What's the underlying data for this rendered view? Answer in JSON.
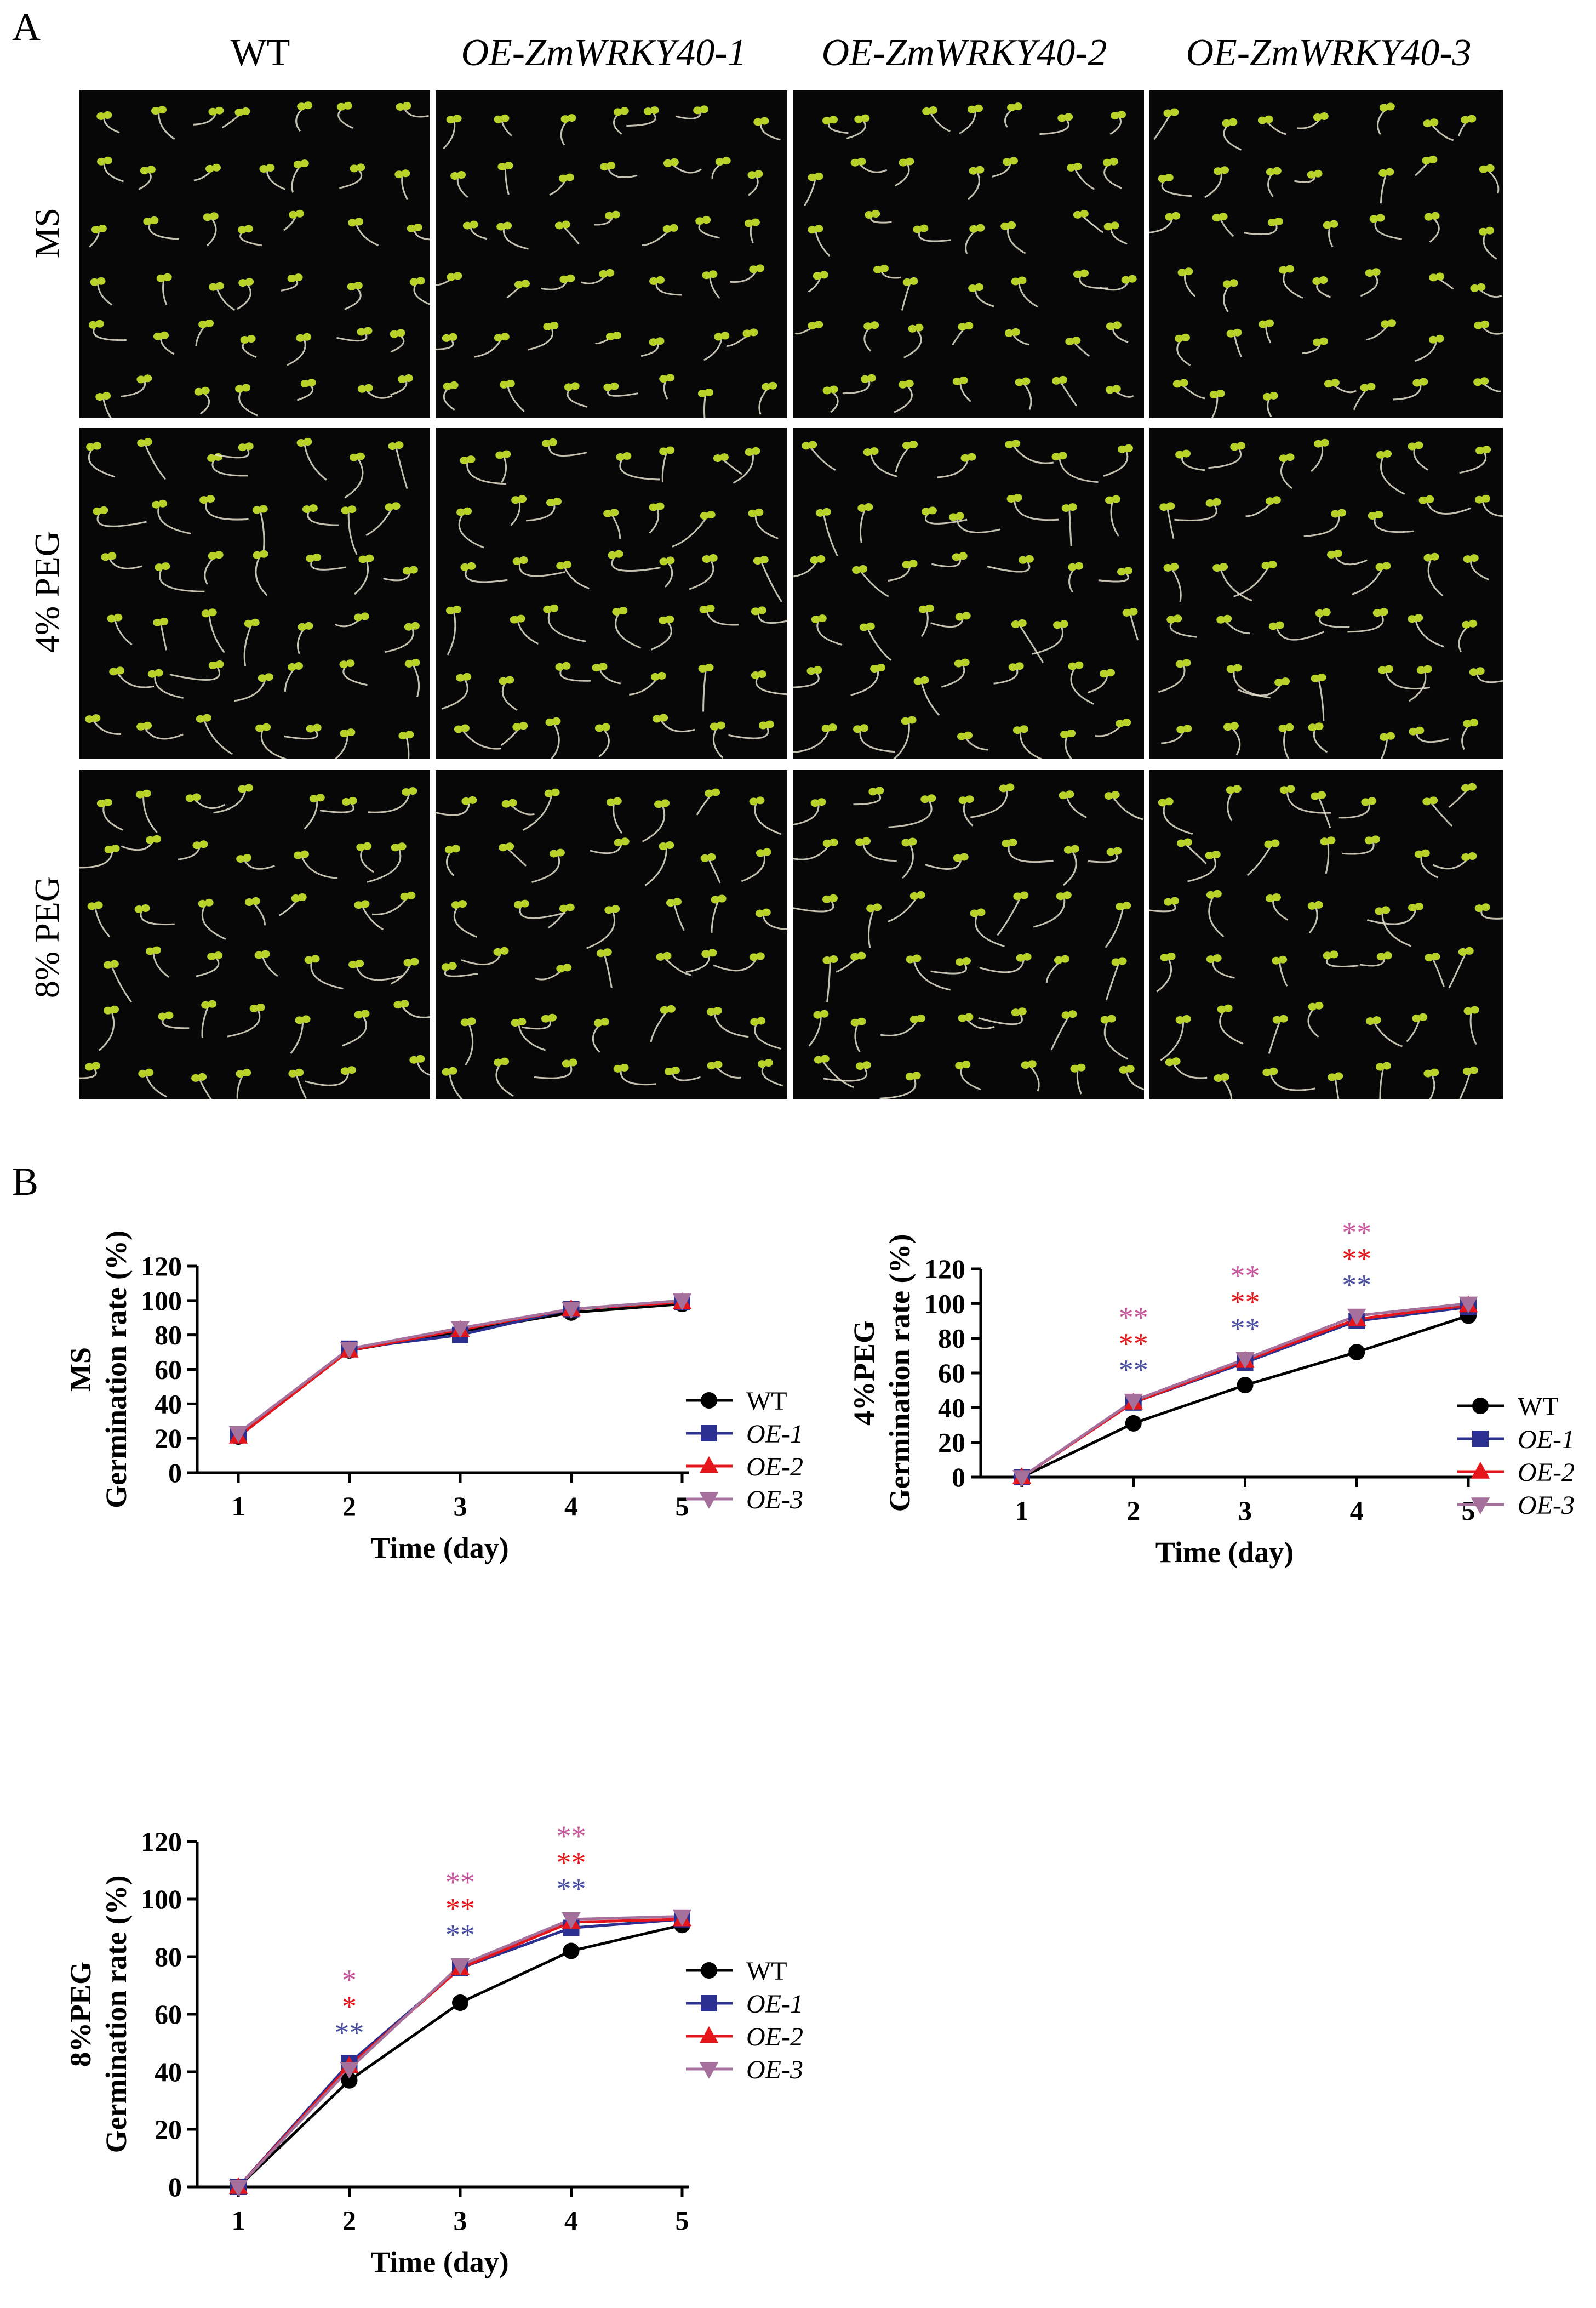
{
  "panel_a": {
    "letter": "A",
    "columns": [
      "WT",
      "OE-ZmWRKY40-1",
      "OE-ZmWRKY40-2",
      "OE-ZmWRKY40-3"
    ],
    "rows": [
      "MS",
      "4% PEG",
      "8% PEG"
    ],
    "colors": {
      "background": "#070707",
      "cotyledon": "#b8d22a",
      "root": "#e6e2cf"
    }
  },
  "panel_b": {
    "letter": "B"
  },
  "chart_data": [
    {
      "type": "line",
      "ylabel": "MS",
      "ylabel2": "Germination rate (%)",
      "xlabel": "Time (day)",
      "x": [
        1,
        2,
        3,
        4,
        5
      ],
      "xlim": [
        1,
        5
      ],
      "ylim": [
        0,
        120
      ],
      "yticks": [
        0,
        20,
        40,
        60,
        80,
        100,
        120
      ],
      "legend_position": "right",
      "series": [
        {
          "name": "WT",
          "marker": "circle",
          "color": "#000000",
          "values": [
            21,
            71,
            82,
            93,
            98
          ]
        },
        {
          "name": "OE-1",
          "marker": "square",
          "color": "#2b2f8f",
          "values": [
            22,
            72,
            80,
            95,
            99
          ]
        },
        {
          "name": "OE-2",
          "marker": "triangle-up",
          "color": "#e4161c",
          "values": [
            21,
            71,
            83,
            95,
            99
          ]
        },
        {
          "name": "OE-3",
          "marker": "triangle-down",
          "color": "#a5719c",
          "values": [
            23,
            72,
            84,
            95,
            100
          ]
        }
      ],
      "annotations": []
    },
    {
      "type": "line",
      "ylabel": "4%PEG",
      "ylabel2": "Germination rate (%)",
      "xlabel": "Time (day)",
      "x": [
        1,
        2,
        3,
        4,
        5
      ],
      "xlim": [
        1,
        5
      ],
      "ylim": [
        0,
        120
      ],
      "yticks": [
        0,
        20,
        40,
        60,
        80,
        100,
        120
      ],
      "legend_position": "right",
      "series": [
        {
          "name": "WT",
          "marker": "circle",
          "color": "#000000",
          "values": [
            0,
            31,
            53,
            72,
            93
          ]
        },
        {
          "name": "OE-1",
          "marker": "square",
          "color": "#2b2f8f",
          "values": [
            0,
            43,
            66,
            90,
            98
          ]
        },
        {
          "name": "OE-2",
          "marker": "triangle-up",
          "color": "#e4161c",
          "values": [
            0,
            43,
            67,
            91,
            99
          ]
        },
        {
          "name": "OE-3",
          "marker": "triangle-down",
          "color": "#a5719c",
          "values": [
            0,
            44,
            68,
            93,
            100
          ]
        }
      ],
      "annotations": [
        {
          "x": 2,
          "marks": [
            {
              "text": "**",
              "color": "#c8569a"
            },
            {
              "text": "**",
              "color": "#e4161c"
            },
            {
              "text": "**",
              "color": "#4a4ea0"
            }
          ]
        },
        {
          "x": 3,
          "marks": [
            {
              "text": "**",
              "color": "#c8569a"
            },
            {
              "text": "**",
              "color": "#e4161c"
            },
            {
              "text": "**",
              "color": "#4a4ea0"
            }
          ]
        },
        {
          "x": 4,
          "marks": [
            {
              "text": "**",
              "color": "#c8569a"
            },
            {
              "text": "**",
              "color": "#e4161c"
            },
            {
              "text": "**",
              "color": "#4a4ea0"
            }
          ]
        }
      ]
    },
    {
      "type": "line",
      "ylabel": "8%PEG",
      "ylabel2": "Germination rate (%)",
      "xlabel": "Time (day)",
      "x": [
        1,
        2,
        3,
        4,
        5
      ],
      "xlim": [
        1,
        5
      ],
      "ylim": [
        0,
        120
      ],
      "yticks": [
        0,
        20,
        40,
        60,
        80,
        100,
        120
      ],
      "legend_position": "right",
      "series": [
        {
          "name": "WT",
          "marker": "circle",
          "color": "#000000",
          "values": [
            0,
            37,
            64,
            82,
            91
          ]
        },
        {
          "name": "OE-1",
          "marker": "square",
          "color": "#2b2f8f",
          "values": [
            0,
            43,
            76,
            90,
            93
          ]
        },
        {
          "name": "OE-2",
          "marker": "triangle-up",
          "color": "#e4161c",
          "values": [
            0,
            42,
            76,
            92,
            93
          ]
        },
        {
          "name": "OE-3",
          "marker": "triangle-down",
          "color": "#a5719c",
          "values": [
            0,
            41,
            77,
            93,
            94
          ]
        }
      ],
      "annotations": [
        {
          "x": 2,
          "marks": [
            {
              "text": "*",
              "color": "#c8569a"
            },
            {
              "text": "*",
              "color": "#e4161c"
            },
            {
              "text": "**",
              "color": "#4a4ea0"
            }
          ]
        },
        {
          "x": 3,
          "marks": [
            {
              "text": "**",
              "color": "#c8569a"
            },
            {
              "text": "**",
              "color": "#e4161c"
            },
            {
              "text": "**",
              "color": "#4a4ea0"
            }
          ]
        },
        {
          "x": 4,
          "marks": [
            {
              "text": "**",
              "color": "#c8569a"
            },
            {
              "text": "**",
              "color": "#e4161c"
            },
            {
              "text": "**",
              "color": "#4a4ea0"
            }
          ]
        }
      ]
    }
  ]
}
